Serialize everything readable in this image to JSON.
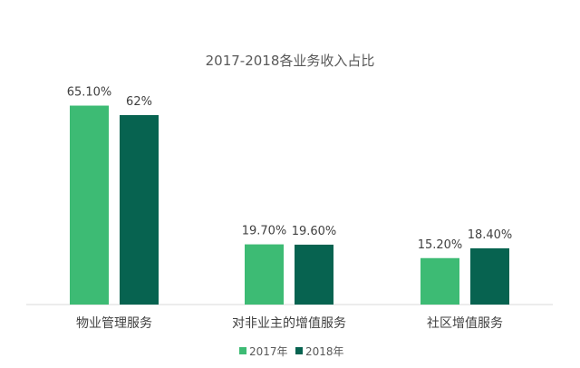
{
  "chart_data": {
    "type": "bar",
    "title": "2017-2018各业务收入占比",
    "categories": [
      "物业管理服务",
      "对非业主的增值服务",
      "社区增值服务"
    ],
    "series": [
      {
        "name": "2017年",
        "color": "#3dbb74",
        "values": [
          65.1,
          19.7,
          15.2
        ],
        "labels": [
          "65.10%",
          "19.70%",
          "15.20%"
        ]
      },
      {
        "name": "2018年",
        "color": "#076350",
        "values": [
          62,
          19.6,
          18.4
        ],
        "labels": [
          "62%",
          "19.60%",
          "18.40%"
        ]
      }
    ],
    "ylim": [
      0,
      70
    ],
    "grid": false,
    "legend_position": "bottom"
  }
}
